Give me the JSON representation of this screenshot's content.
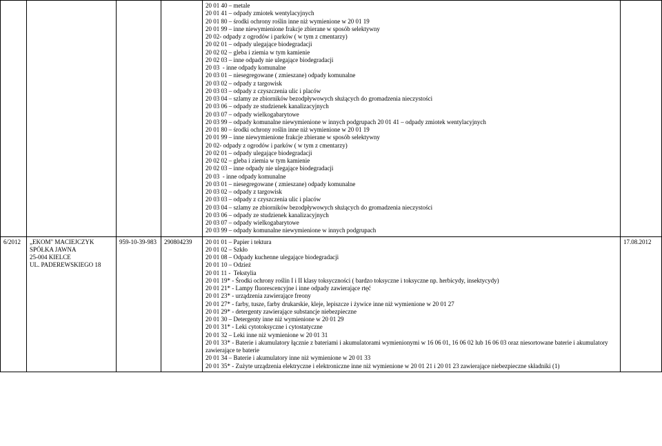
{
  "colors": {
    "text": "#000000",
    "border": "#000000",
    "background": "#ffffff"
  },
  "typography": {
    "font_family": "Times New Roman",
    "font_size_pt": 9,
    "line_height": 1.25
  },
  "rows": [
    {
      "num": "",
      "company": "",
      "regon": "",
      "nip": "",
      "date": "",
      "content": [
        "20 01 40 – metale",
        "20 01 41 – odpady zmiotek wentylacyjnych",
        "20 01 80 – środki ochrony roślin inne niż wymienione w 20 01 19",
        "20 01 99 – inne niewymienione frakcje zbierane w sposób selektywny",
        "20 02- odpady z ogrodów i parków ( w tym z cmentarzy)",
        "20 02 01 – odpady ulegające biodegradacji",
        "20 02 02 – gleba i ziemia w tym kamienie",
        "20 02 03 – inne odpady nie ulegające biodegradacji",
        "20 03  - inne odpady komunalne",
        "20 03 01 – niesegregowane ( zmieszane) odpady komunalne",
        "20 03 02 – odpady z targowisk",
        "20 03 03 – odpady z czyszczenia ulic i placów",
        "20 03 04 – szlamy ze zbiorników bezodpływowych służących do gromadzenia nieczystości",
        "20 03 06 – odpady ze studzienek kanalizacyjnych",
        "20 03 07 – odpady wielkogabarytowe",
        "20 03 99 – odpady komunalne niewymienione w innych podgrupach 20 01 41 – odpady zmiotek wentylacyjnych",
        "20 01 80 – środki ochrony roślin inne niż wymienione w 20 01 19",
        "20 01 99 – inne niewymienione frakcje zbierane w sposób selektywny",
        "20 02- odpady z ogrodów i parków ( w tym z cmentarzy)",
        "20 02 01 – odpady ulegające biodegradacji",
        "20 02 02 – gleba i ziemia w tym kamienie",
        "20 02 03 – inne odpady nie ulegające biodegradacji",
        "20 03  - inne odpady komunalne",
        "20 03 01 – niesegregowane ( zmieszane) odpady komunalne",
        "20 03 02 – odpady z targowisk",
        "20 03 03 – odpady z czyszczenia ulic i placów",
        "20 03 04 – szlamy ze zbiorników bezodpływowych służących do gromadzenia nieczystości",
        "20 03 06 – odpady ze studzienek kanalizacyjnych",
        "20 03 07 – odpady wielkogabarytowe",
        "20 03 99 – odpady komunalne niewymienione w innych podgrupach"
      ]
    },
    {
      "num": "6/2012",
      "company": "„EKOM\" MACIEJCZYK\nSPÓŁKA JAWNA\n25-004 KIELCE\nUL. PADEREWSKIEGO 18",
      "regon": "959-10-39-983",
      "nip": "290804239",
      "date": "17.08.2012",
      "content": [
        "20 01 01 – Papier i tektura",
        "20 01 02 – Szkło",
        "20 01 08 – Odpady kuchenne ulegające biodegradacji",
        "20 01 10 – Odzież",
        "20 01 11 -  Tekstylia",
        "20 01 19* - Środki ochrony roślin I i II klasy toksyczności ( bardzo toksyczne i toksyczne np. herbicydy, insektycydy)",
        "20 01 21* - Lampy fluorescencyjne i inne odpady zawierające rtęć",
        "20 01 23* - urządzenia zawierające freony",
        "20 01 27* - farby, tusze, farby drukarskie, kleje, lepiszcze i żywice inne niż wymienione w 20 01 27",
        "20 01 29* - detergenty zawierające substancje niebezpieczne",
        "20 01 30 – Detergenty inne niż wymienione w 20 01 29",
        "20 01 31* - Leki cytotoksyczne i cytostatyczne",
        "20 01 32 – Leki inne niż wymienione w 20 01 31",
        "20 01 33* - Baterie i akumulatory łącznie z bateriami i akumulatorami wymienionymi w 16 06 01, 16 06 02 lub 16 06 03 oraz niesortowane baterie i akumulatory zawierające te baterie",
        "20 01 34 – Baterie i akumulatory inne niż wymienione w 20 01 33",
        "20 01 35* - Zużyte urządzenia elektryczne i elektroniczne inne niż wymienione w 20 01 21 i 20 01 23 zawierające niebezpieczne składniki (1)"
      ]
    }
  ]
}
